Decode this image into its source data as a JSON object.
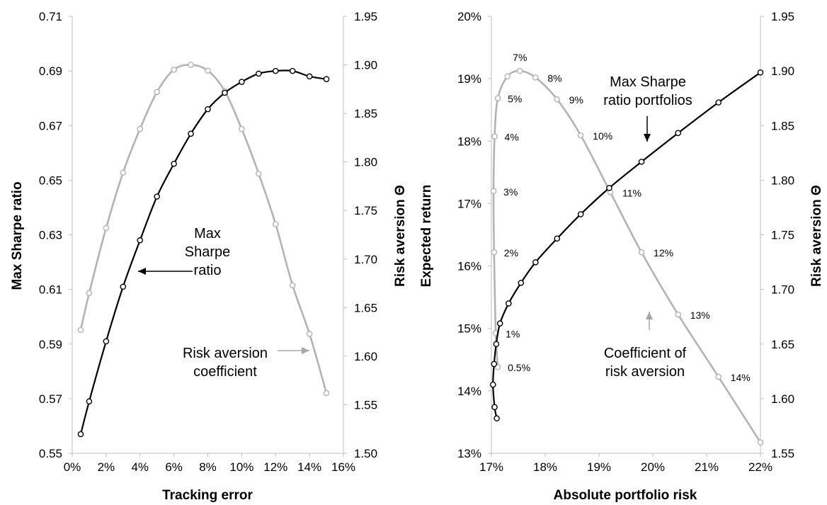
{
  "chart_data": [
    {
      "type": "line",
      "xlabel": "Tracking error",
      "ylabel": "Max Sharpe ratio",
      "y2label": "Risk aversion Θ",
      "xlim": [
        0,
        0.16
      ],
      "ylim": [
        0.55,
        0.71
      ],
      "y2lim": [
        1.5,
        1.95
      ],
      "x_ticks": [
        "0%",
        "2%",
        "4%",
        "6%",
        "8%",
        "10%",
        "12%",
        "14%",
        "16%"
      ],
      "y_ticks": [
        "0.55",
        "0.57",
        "0.59",
        "0.61",
        "0.63",
        "0.65",
        "0.67",
        "0.69",
        "0.71"
      ],
      "y2_ticks": [
        "1.50",
        "1.55",
        "1.60",
        "1.65",
        "1.70",
        "1.75",
        "1.80",
        "1.85",
        "1.90",
        "1.95"
      ],
      "grid": false,
      "series": [
        {
          "name": "Max Sharpe ratio",
          "axis": "left",
          "color": "#000000",
          "x": [
            0.005,
            0.01,
            0.02,
            0.03,
            0.04,
            0.05,
            0.06,
            0.07,
            0.08,
            0.09,
            0.1,
            0.11,
            0.12,
            0.13,
            0.14,
            0.15
          ],
          "y": [
            0.557,
            0.569,
            0.591,
            0.611,
            0.628,
            0.644,
            0.656,
            0.667,
            0.676,
            0.682,
            0.686,
            0.689,
            0.69,
            0.69,
            0.688,
            0.687
          ]
        },
        {
          "name": "Risk aversion coefficient",
          "axis": "right",
          "color": "#b3b3b3",
          "x": [
            0.005,
            0.01,
            0.02,
            0.03,
            0.04,
            0.05,
            0.06,
            0.07,
            0.08,
            0.09,
            0.1,
            0.11,
            0.12,
            0.13,
            0.14,
            0.15
          ],
          "y": [
            1.627,
            1.665,
            1.732,
            1.789,
            1.834,
            1.872,
            1.895,
            1.9,
            1.894,
            1.873,
            1.834,
            1.788,
            1.736,
            1.673,
            1.623,
            1.562
          ]
        }
      ],
      "annotations": [
        {
          "lines": [
            "Max",
            "Sharpe",
            "ratio"
          ],
          "color": "#000000"
        },
        {
          "lines": [
            "Risk aversion",
            "coefficient"
          ],
          "color": "#000000"
        }
      ]
    },
    {
      "type": "line",
      "xlabel": "Absolute portfolio risk",
      "ylabel": "Expected return",
      "y2label": "Risk aversion Θ",
      "xlim": [
        0.17,
        0.22
      ],
      "ylim": [
        0.13,
        0.2
      ],
      "y2lim": [
        1.55,
        1.95
      ],
      "x_ticks": [
        "17%",
        "18%",
        "19%",
        "20%",
        "21%",
        "22%"
      ],
      "y_ticks": [
        "13%",
        "14%",
        "15%",
        "16%",
        "17%",
        "18%",
        "19%",
        "20%"
      ],
      "y2_ticks": [
        "1.55",
        "1.60",
        "1.65",
        "1.70",
        "1.75",
        "1.80",
        "1.85",
        "1.90",
        "1.95"
      ],
      "grid": false,
      "series": [
        {
          "name": "Max Sharpe ratio portfolios",
          "axis": "left",
          "color": "#000000",
          "x": [
            0.171,
            0.1706,
            0.1703,
            0.1705,
            0.1709,
            0.1716,
            0.1732,
            0.1755,
            0.1782,
            0.1822,
            0.1866,
            0.1919,
            0.1979,
            0.2047,
            0.2122,
            0.22
          ],
          "y": [
            0.1356,
            0.1374,
            0.141,
            0.1443,
            0.1475,
            0.1508,
            0.154,
            0.1573,
            0.1606,
            0.1644,
            0.1683,
            0.1725,
            0.1767,
            0.1813,
            0.1862,
            0.191
          ]
        },
        {
          "name": "Coefficient of risk aversion",
          "axis": "right",
          "color": "#b3b3b3",
          "x": [
            0.1712,
            0.1708,
            0.1705,
            0.1704,
            0.1706,
            0.1712,
            0.173,
            0.1753,
            0.1782,
            0.1822,
            0.1866,
            0.1921,
            0.1979,
            0.2047,
            0.2122,
            0.22
          ],
          "y": [
            1.629,
            1.66,
            1.734,
            1.79,
            1.84,
            1.875,
            1.895,
            1.9,
            1.894,
            1.874,
            1.841,
            1.789,
            1.734,
            1.677,
            1.62,
            1.56
          ],
          "point_labels": [
            "0.5%",
            "1%",
            "2%",
            "3%",
            "4%",
            "5%",
            "",
            "7%",
            "8%",
            "9%",
            "10%",
            "11%",
            "12%",
            "13%",
            "14%",
            ""
          ]
        }
      ],
      "annotations": [
        {
          "lines": [
            "Max Sharpe",
            "ratio portfolios"
          ],
          "color": "#000000"
        },
        {
          "lines": [
            "Coefficient of",
            "risk aversion"
          ],
          "color": "#000000"
        }
      ]
    }
  ]
}
